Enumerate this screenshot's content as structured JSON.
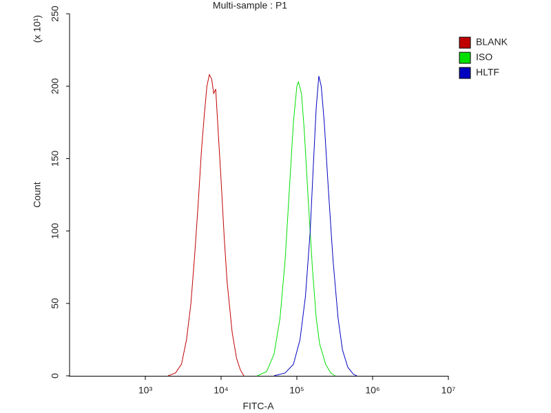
{
  "chart_data": {
    "type": "histogram-line",
    "title": "Multi-sample : P1",
    "x_label": "FITC-A",
    "y_label": "Count",
    "y_multiplier": "(x 10¹)",
    "x_scale": "log",
    "grid": false,
    "legend_position": "right",
    "xlim": [
      100,
      10000000
    ],
    "xticks": [
      {
        "value": 1000,
        "label": "10³"
      },
      {
        "value": 10000,
        "label": "10⁴"
      },
      {
        "value": 100000,
        "label": "10⁵"
      },
      {
        "value": 1000000,
        "label": "10⁶"
      },
      {
        "value": 10000000,
        "label": "10⁷"
      }
    ],
    "ylim": [
      0,
      250
    ],
    "yticks": [
      0,
      50,
      100,
      150,
      200,
      250
    ],
    "series": [
      {
        "name": "BLANK",
        "color": "#c00000",
        "x": [
          2000,
          2500,
          3000,
          3500,
          4000,
          4500,
          5000,
          5500,
          6000,
          6500,
          7000,
          7500,
          8000,
          8500,
          9000,
          10000,
          11000,
          12000,
          14000,
          16000,
          18000,
          20000
        ],
        "values": [
          0,
          2,
          8,
          25,
          50,
          85,
          120,
          155,
          180,
          200,
          208,
          205,
          195,
          198,
          175,
          135,
          95,
          65,
          30,
          12,
          4,
          0
        ]
      },
      {
        "name": "ISO",
        "color": "#00e000",
        "x": [
          30000,
          40000,
          50000,
          60000,
          70000,
          80000,
          90000,
          100000,
          105000,
          115000,
          125000,
          140000,
          160000,
          180000,
          200000,
          240000,
          280000,
          320000
        ],
        "values": [
          0,
          3,
          15,
          40,
          80,
          130,
          175,
          200,
          203,
          195,
          170,
          125,
          75,
          40,
          22,
          8,
          2,
          0
        ]
      },
      {
        "name": "HLTF",
        "color": "#0000c0",
        "x": [
          50000,
          70000,
          90000,
          110000,
          130000,
          150000,
          165000,
          180000,
          195000,
          210000,
          230000,
          260000,
          300000,
          350000,
          400000,
          470000,
          560000,
          620000
        ],
        "values": [
          0,
          2,
          8,
          25,
          55,
          100,
          145,
          185,
          207,
          200,
          175,
          130,
          80,
          40,
          18,
          6,
          1,
          0
        ]
      }
    ]
  }
}
